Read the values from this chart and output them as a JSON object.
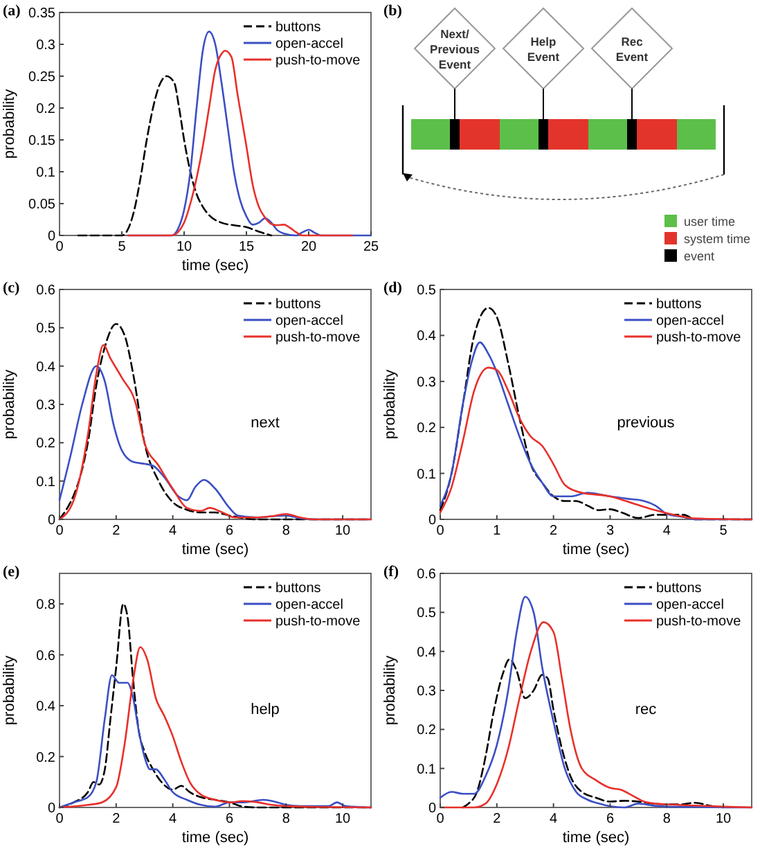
{
  "chart_data": [
    {
      "type": "line",
      "title": "(a)",
      "xlabel": "time (sec)",
      "ylabel": "probability",
      "xlim": [
        0,
        25
      ],
      "xticks": [
        0,
        5,
        10,
        15,
        20,
        25
      ],
      "ylim": [
        0,
        0.35
      ],
      "yticks": [
        0,
        0.05,
        0.1,
        0.15,
        0.2,
        0.25,
        0.3,
        0.35
      ],
      "grid": false,
      "legend": "top right",
      "marker": "none",
      "series": [
        {
          "name": "buttons",
          "color": "#000000",
          "line_style": "dashed",
          "x": [
            1.5,
            5,
            5.5,
            6,
            6.5,
            7,
            7.5,
            8,
            8.6,
            9.2,
            9.6,
            10,
            10.5,
            11,
            11.5,
            12,
            13,
            14,
            15,
            16,
            17
          ],
          "values": [
            0,
            0,
            0.01,
            0.04,
            0.09,
            0.15,
            0.2,
            0.235,
            0.25,
            0.24,
            0.2,
            0.15,
            0.1,
            0.065,
            0.045,
            0.032,
            0.02,
            0.016,
            0.013,
            0.006,
            0
          ]
        },
        {
          "name": "open-accel",
          "color": "#3b4fc4",
          "line_style": "solid",
          "x": [
            5.5,
            9,
            9.5,
            10,
            10.5,
            11,
            11.5,
            12,
            12.5,
            13,
            13.5,
            14,
            14.5,
            15,
            15.5,
            16,
            16.5,
            17,
            17.5,
            18,
            19,
            19.5,
            20,
            20.5,
            21,
            25
          ],
          "values": [
            0,
            0,
            0.01,
            0.04,
            0.1,
            0.2,
            0.29,
            0.32,
            0.3,
            0.24,
            0.17,
            0.1,
            0.055,
            0.03,
            0.017,
            0.02,
            0.027,
            0.02,
            0.008,
            0.003,
            0,
            0.005,
            0.009,
            0.004,
            0,
            0
          ]
        },
        {
          "name": "push-to-move",
          "color": "#e8302a",
          "line_style": "solid",
          "x": [
            5.5,
            9,
            9.5,
            10,
            10.5,
            11,
            11.5,
            12,
            12.5,
            13,
            13.3,
            13.8,
            14.3,
            15,
            15.5,
            16,
            16.5,
            17,
            17.5,
            18,
            18.5,
            19,
            19.5,
            23.5
          ],
          "values": [
            0,
            0,
            0.005,
            0.02,
            0.05,
            0.09,
            0.14,
            0.2,
            0.26,
            0.285,
            0.29,
            0.28,
            0.22,
            0.14,
            0.08,
            0.045,
            0.028,
            0.018,
            0.016,
            0.017,
            0.012,
            0.005,
            0,
            0
          ]
        }
      ]
    },
    {
      "type": "other",
      "title": "(b)",
      "annotations": [
        "Next/ Previous Event",
        "Help Event",
        "Rec Event"
      ],
      "legend": "bottom right",
      "series": [
        {
          "name": "user time",
          "color": "#5cbf4a"
        },
        {
          "name": "system time",
          "color": "#e3342b"
        },
        {
          "name": "event",
          "color": "#000000"
        }
      ]
    },
    {
      "type": "line",
      "title": "(c)",
      "xlabel": "time (sec)",
      "ylabel": "probability",
      "xlim": [
        0,
        11
      ],
      "xticks": [
        0,
        2,
        4,
        6,
        8,
        10
      ],
      "ylim": [
        0,
        0.6
      ],
      "yticks": [
        0,
        0.1,
        0.2,
        0.3,
        0.4,
        0.5,
        0.6
      ],
      "grid": false,
      "legend": "top right",
      "marker": "none",
      "annotations": [
        "next"
      ],
      "series": [
        {
          "name": "buttons",
          "color": "#000000",
          "line_style": "dashed",
          "x": [
            0,
            1,
            1.3,
            1.6,
            2,
            2.3,
            2.6,
            3,
            3.5,
            4,
            4.5,
            5,
            5.5,
            6,
            6.5,
            7,
            11
          ],
          "values": [
            0,
            0.2,
            0.35,
            0.45,
            0.51,
            0.48,
            0.38,
            0.2,
            0.1,
            0.045,
            0.025,
            0.018,
            0.018,
            0.01,
            0.003,
            0,
            0
          ]
        },
        {
          "name": "open-accel",
          "color": "#3b4fc4",
          "line_style": "solid",
          "x": [
            0,
            0.4,
            0.8,
            1.3,
            1.6,
            1.9,
            2.2,
            2.6,
            3,
            3.3,
            3.7,
            4.2,
            4.5,
            4.8,
            5.1,
            5.5,
            6,
            6.3,
            7,
            7.5,
            8,
            8.5,
            9,
            11
          ],
          "values": [
            0.05,
            0.17,
            0.3,
            0.4,
            0.36,
            0.25,
            0.18,
            0.15,
            0.145,
            0.14,
            0.11,
            0.06,
            0.05,
            0.085,
            0.103,
            0.08,
            0.03,
            0.01,
            0.005,
            0.008,
            0.01,
            0.003,
            0,
            0
          ]
        },
        {
          "name": "push-to-move",
          "color": "#e8302a",
          "line_style": "solid",
          "x": [
            0,
            0.5,
            1,
            1.3,
            1.55,
            1.8,
            2.2,
            2.7,
            3,
            3.5,
            4,
            4.5,
            5,
            5.3,
            5.7,
            6.2,
            7,
            7.5,
            8,
            8.5,
            9,
            11
          ],
          "values": [
            0,
            0.05,
            0.22,
            0.38,
            0.455,
            0.42,
            0.37,
            0.3,
            0.2,
            0.14,
            0.08,
            0.03,
            0.022,
            0.03,
            0.02,
            0.005,
            0.005,
            0.008,
            0.014,
            0.005,
            0,
            0
          ]
        }
      ]
    },
    {
      "type": "line",
      "title": "(d)",
      "xlabel": "time (sec)",
      "ylabel": "probability",
      "xlim": [
        0,
        5.5
      ],
      "xticks": [
        0,
        1,
        2,
        3,
        4,
        5
      ],
      "ylim": [
        0,
        0.5
      ],
      "yticks": [
        0,
        0.1,
        0.2,
        0.3,
        0.4,
        0.5
      ],
      "grid": false,
      "legend": "top right",
      "marker": "none",
      "annotations": [
        "previous"
      ],
      "series": [
        {
          "name": "buttons",
          "color": "#000000",
          "line_style": "dashed",
          "x": [
            0,
            0.2,
            0.4,
            0.6,
            0.85,
            1,
            1.2,
            1.4,
            1.6,
            1.8,
            2,
            2.2,
            2.4,
            2.6,
            2.8,
            3,
            3.2,
            3.5,
            3.8,
            4,
            4.3,
            4.5,
            5.5
          ],
          "values": [
            0.02,
            0.1,
            0.25,
            0.4,
            0.46,
            0.44,
            0.34,
            0.22,
            0.12,
            0.08,
            0.05,
            0.04,
            0.04,
            0.03,
            0.02,
            0.022,
            0.015,
            0.003,
            0.01,
            0.01,
            0.01,
            0,
            0
          ]
        },
        {
          "name": "open-accel",
          "color": "#3b4fc4",
          "line_style": "solid",
          "x": [
            0,
            0.2,
            0.4,
            0.55,
            0.7,
            0.85,
            1,
            1.2,
            1.4,
            1.6,
            1.8,
            2,
            2.3,
            2.6,
            3,
            3.3,
            3.6,
            3.8,
            4,
            4.3,
            4.5,
            5.5
          ],
          "values": [
            0.03,
            0.1,
            0.25,
            0.34,
            0.385,
            0.36,
            0.32,
            0.25,
            0.18,
            0.12,
            0.08,
            0.05,
            0.05,
            0.058,
            0.05,
            0.045,
            0.04,
            0.03,
            0.012,
            0.005,
            0,
            0
          ]
        },
        {
          "name": "push-to-move",
          "color": "#e8302a",
          "line_style": "solid",
          "x": [
            0,
            0.2,
            0.4,
            0.6,
            0.85,
            1,
            1.2,
            1.4,
            1.6,
            1.8,
            2,
            2.2,
            2.5,
            3,
            3.4,
            3.8,
            4.2,
            4.5,
            5.5
          ],
          "values": [
            0.015,
            0.07,
            0.17,
            0.28,
            0.33,
            0.325,
            0.28,
            0.22,
            0.18,
            0.16,
            0.12,
            0.075,
            0.058,
            0.05,
            0.035,
            0.02,
            0.008,
            0.002,
            0
          ]
        }
      ]
    },
    {
      "type": "line",
      "title": "(e)",
      "xlabel": "time (sec)",
      "ylabel": "probability",
      "xlim": [
        0,
        11
      ],
      "xticks": [
        0,
        2,
        4,
        6,
        8,
        10
      ],
      "ylim": [
        0,
        0.92
      ],
      "yticks": [
        0,
        0.2,
        0.4,
        0.6,
        0.8
      ],
      "grid": false,
      "legend": "top right",
      "marker": "none",
      "annotations": [
        "help"
      ],
      "series": [
        {
          "name": "buttons",
          "color": "#000000",
          "line_style": "dashed",
          "x": [
            0,
            0.5,
            1,
            1.2,
            1.4,
            1.6,
            1.8,
            2,
            2.25,
            2.4,
            2.6,
            2.8,
            3,
            3.3,
            3.6,
            4,
            4.3,
            4.6,
            5,
            5.5,
            6,
            6.5,
            7,
            11
          ],
          "values": [
            0,
            0.02,
            0.06,
            0.1,
            0.09,
            0.15,
            0.35,
            0.55,
            0.8,
            0.75,
            0.5,
            0.3,
            0.22,
            0.15,
            0.1,
            0.07,
            0.085,
            0.06,
            0.04,
            0.03,
            0.02,
            0.003,
            0,
            0
          ]
        },
        {
          "name": "open-accel",
          "color": "#3b4fc4",
          "line_style": "solid",
          "x": [
            0,
            0.5,
            1,
            1.3,
            1.6,
            1.85,
            2.1,
            2.4,
            2.6,
            2.8,
            3,
            3.2,
            3.4,
            3.7,
            4,
            4.5,
            5,
            5.5,
            6,
            6.5,
            7.2,
            7.7,
            8,
            8.5,
            9.5,
            9.8,
            10.1,
            11
          ],
          "values": [
            0,
            0.02,
            0.04,
            0.1,
            0.35,
            0.52,
            0.49,
            0.49,
            0.43,
            0.3,
            0.2,
            0.15,
            0.15,
            0.11,
            0.06,
            0.03,
            0.01,
            0.003,
            0.02,
            0.02,
            0.03,
            0.02,
            0.01,
            0.005,
            0.005,
            0.02,
            0.005,
            0
          ]
        },
        {
          "name": "push-to-move",
          "color": "#e8302a",
          "line_style": "solid",
          "x": [
            0,
            1,
            1.5,
            2,
            2.3,
            2.6,
            2.85,
            3.1,
            3.4,
            3.7,
            4,
            4.3,
            4.6,
            5,
            5.5,
            6,
            6.5,
            7,
            7.5,
            8,
            9,
            11
          ],
          "values": [
            0,
            0.01,
            0.02,
            0.08,
            0.25,
            0.5,
            0.63,
            0.58,
            0.43,
            0.36,
            0.28,
            0.18,
            0.1,
            0.05,
            0.03,
            0.02,
            0.025,
            0.02,
            0.01,
            0.005,
            0.002,
            0
          ]
        }
      ]
    },
    {
      "type": "line",
      "title": "(f)",
      "xlabel": "time (sec)",
      "ylabel": "probability",
      "xlim": [
        0,
        11
      ],
      "xticks": [
        0,
        2,
        4,
        6,
        8,
        10
      ],
      "ylim": [
        0,
        0.6
      ],
      "yticks": [
        0,
        0.1,
        0.2,
        0.3,
        0.4,
        0.5,
        0.6
      ],
      "grid": false,
      "legend": "top right",
      "marker": "none",
      "annotations": [
        "rec"
      ],
      "series": [
        {
          "name": "buttons",
          "color": "#000000",
          "line_style": "dashed",
          "x": [
            0.8,
            1,
            1.3,
            1.6,
            1.9,
            2.2,
            2.45,
            2.7,
            3,
            3.3,
            3.6,
            3.8,
            4,
            4.3,
            4.6,
            5,
            5.5,
            6,
            6.5,
            7,
            7.5,
            8,
            8.5,
            9,
            9.5,
            10
          ],
          "values": [
            0,
            0.01,
            0.04,
            0.13,
            0.25,
            0.34,
            0.38,
            0.35,
            0.28,
            0.3,
            0.34,
            0.33,
            0.25,
            0.15,
            0.08,
            0.04,
            0.025,
            0.015,
            0.017,
            0.015,
            0.01,
            0.008,
            0.008,
            0.012,
            0.005,
            0
          ]
        },
        {
          "name": "open-accel",
          "color": "#3b4fc4",
          "line_style": "solid",
          "x": [
            0,
            0.4,
            0.8,
            1.2,
            1.6,
            2,
            2.4,
            2.7,
            3,
            3.3,
            3.6,
            4,
            4.4,
            4.8,
            5.2,
            5.6,
            6,
            6.5,
            7,
            7.5,
            8,
            11
          ],
          "values": [
            0.025,
            0.04,
            0.035,
            0.035,
            0.08,
            0.16,
            0.3,
            0.45,
            0.54,
            0.5,
            0.36,
            0.22,
            0.1,
            0.04,
            0.02,
            0.01,
            0.003,
            0,
            0.01,
            0.005,
            0.002,
            0
          ]
        },
        {
          "name": "push-to-move",
          "color": "#e8302a",
          "line_style": "solid",
          "x": [
            0,
            1.2,
            1.6,
            2,
            2.4,
            2.8,
            3.2,
            3.65,
            4,
            4.3,
            4.6,
            5,
            5.5,
            6,
            6.4,
            6.8,
            7.2,
            7.6,
            8,
            9,
            10,
            11
          ],
          "values": [
            0,
            0,
            0.01,
            0.06,
            0.15,
            0.28,
            0.4,
            0.475,
            0.45,
            0.33,
            0.2,
            0.1,
            0.07,
            0.05,
            0.045,
            0.03,
            0.015,
            0.01,
            0.008,
            0.005,
            0.002,
            0
          ]
        }
      ]
    }
  ]
}
